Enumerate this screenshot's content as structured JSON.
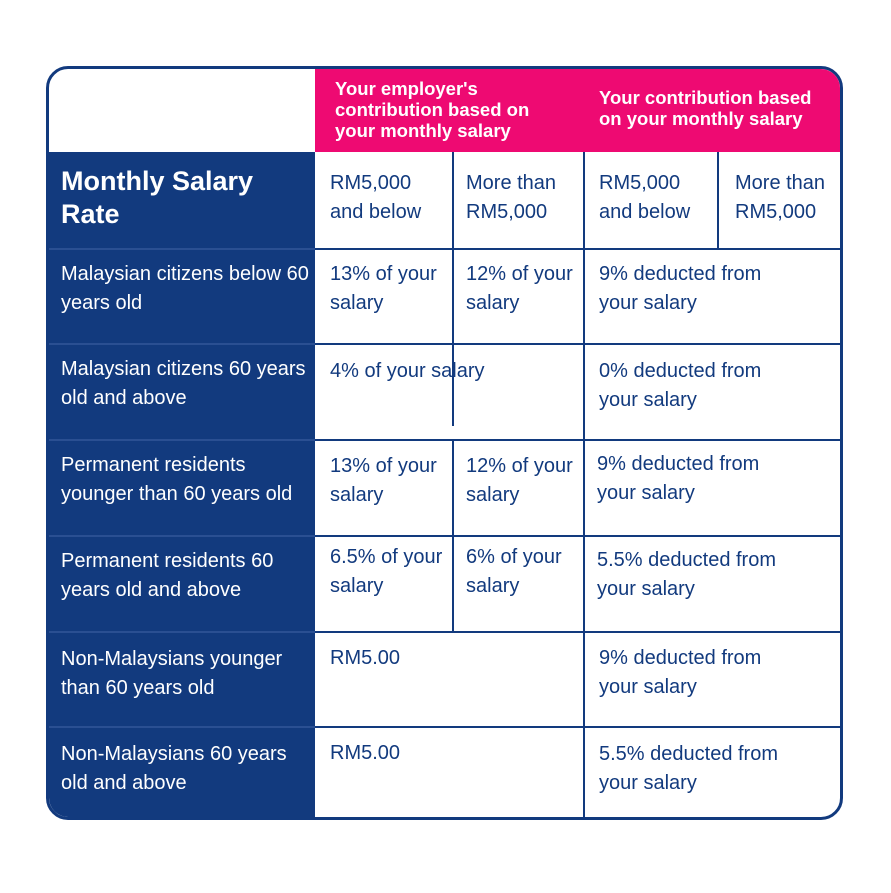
{
  "header": {
    "employer_title": "Your employer's contribution based on your monthly salary",
    "employee_title": "Your contribution based on your monthly salary",
    "row_header": "Monthly Salary Rate",
    "sub": {
      "emp_low": "RM5,000 and below",
      "emp_high": "More than RM5,000",
      "you_low": "RM5,000 and below",
      "you_high": "More than RM5,000"
    }
  },
  "rows": [
    {
      "label": "Malaysian citizens below 60 years old",
      "emp_low": "13% of your salary",
      "emp_high": "12% of your salary",
      "you": "9% deducted from your salary"
    },
    {
      "label": "Malaysian citizens 60 years old and above",
      "emp": "4% of your salary",
      "you": "0% deducted from your salary"
    },
    {
      "label": "Permanent residents younger than 60 years old",
      "emp_low": "13% of your salary",
      "emp_high": "12% of your salary",
      "you": "9% deducted from your salary"
    },
    {
      "label": "Permanent residents 60 years old and above",
      "emp_low": "6.5% of your salary",
      "emp_high": "6% of your salary",
      "you": "5.5% deducted from your salary"
    },
    {
      "label": "Non-Malaysians younger than 60 years old",
      "emp": "RM5.00",
      "you": "9% deducted from your salary"
    },
    {
      "label": "Non-Malaysians 60 years old and above",
      "emp": "RM5.00",
      "you": "5.5% deducted from your salary"
    }
  ],
  "colors": {
    "navy": "#123a7e",
    "pink": "#ee0a72",
    "white": "#ffffff"
  }
}
